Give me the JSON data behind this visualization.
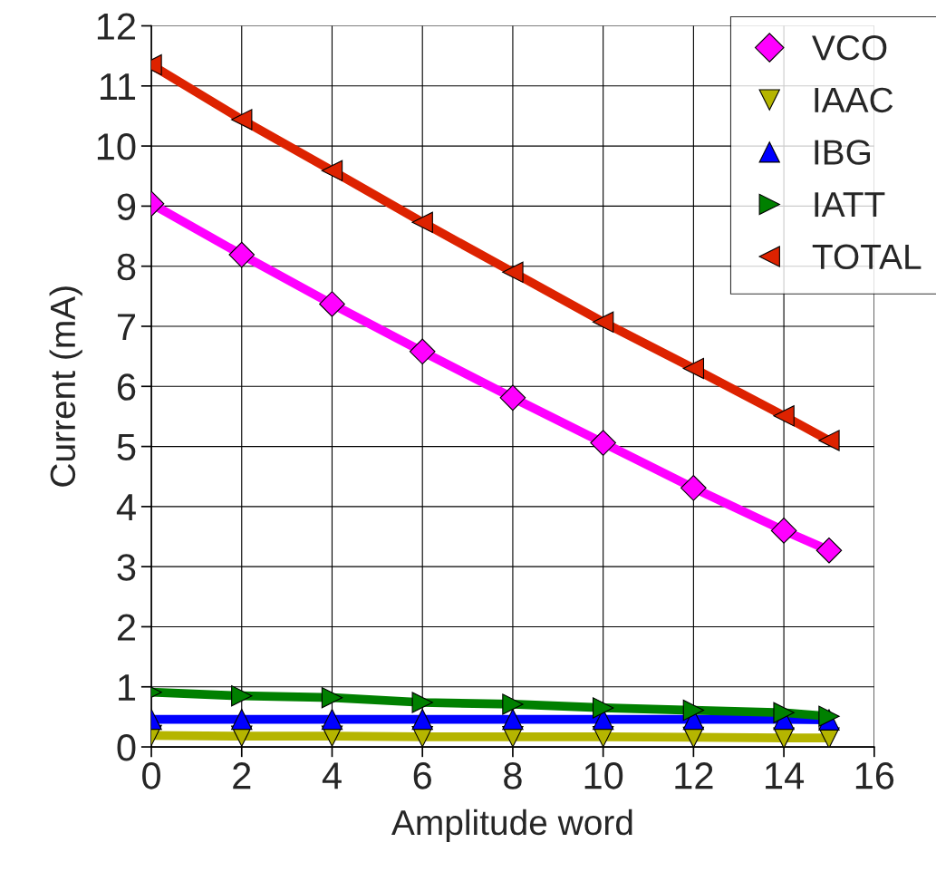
{
  "chart_data": {
    "type": "line",
    "xlabel": "Amplitude word",
    "ylabel": "Current (mA)",
    "x": [
      0,
      2,
      4,
      6,
      8,
      10,
      12,
      14,
      15
    ],
    "series": [
      {
        "name": "VCO",
        "color": "#ff00ff",
        "marker": "diamond",
        "values": [
          9.04,
          8.19,
          7.37,
          6.58,
          5.81,
          5.06,
          4.31,
          3.6,
          3.27
        ]
      },
      {
        "name": "IAAC",
        "color": "#b5b500",
        "marker": "triangle_down",
        "values": [
          0.19,
          0.18,
          0.18,
          0.17,
          0.17,
          0.17,
          0.16,
          0.15,
          0.15
        ]
      },
      {
        "name": "IBG",
        "color": "#0000ff",
        "marker": "triangle",
        "values": [
          0.46,
          0.46,
          0.46,
          0.46,
          0.46,
          0.46,
          0.46,
          0.46,
          0.45
        ]
      },
      {
        "name": "IATT",
        "color": "#008000",
        "marker": "triangle_right",
        "values": [
          0.91,
          0.85,
          0.82,
          0.74,
          0.71,
          0.65,
          0.61,
          0.57,
          0.51
        ]
      },
      {
        "name": "TOTAL",
        "color": "#dd2200",
        "marker": "triangle_left",
        "values": [
          11.35,
          10.44,
          9.59,
          8.73,
          7.9,
          7.07,
          6.3,
          5.51,
          5.1
        ]
      }
    ],
    "xlim": [
      0,
      16
    ],
    "xticks": [
      0,
      2,
      4,
      6,
      8,
      10,
      12,
      14,
      16
    ],
    "ylim": [
      0,
      12
    ],
    "yticks": [
      0,
      1,
      2,
      3,
      4,
      5,
      6,
      7,
      8,
      9,
      10,
      11,
      12
    ],
    "grid": true,
    "legend": "top right",
    "line_style": "solid"
  }
}
